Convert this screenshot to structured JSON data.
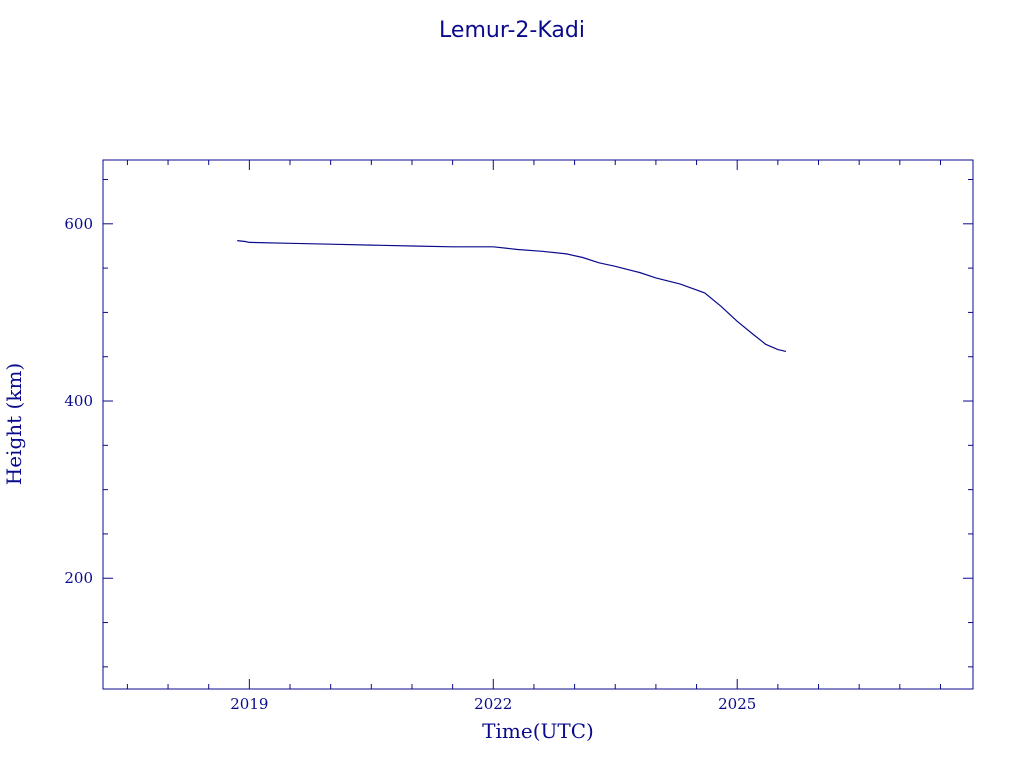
{
  "chart_data": {
    "type": "line",
    "title": "Lemur-2-Kadi",
    "xlabel": "Time(UTC)",
    "ylabel": "Height (km)",
    "xlim": [
      2017.2,
      2027.9
    ],
    "ylim": [
      75,
      672
    ],
    "x_ticks": [
      2019,
      2022,
      2025
    ],
    "x_tick_labels": [
      "2019",
      "2022",
      "2025"
    ],
    "x_minor_step": 0.5,
    "y_ticks": [
      200,
      400,
      600
    ],
    "y_tick_labels": [
      "200",
      "400",
      "600"
    ],
    "y_minor_step": 50,
    "grid": false,
    "color": "#0a0a8c",
    "series": [
      {
        "x": [
          2018.85,
          2018.95,
          2019.0,
          2019.5,
          2020.0,
          2020.5,
          2021.0,
          2021.5,
          2022.0,
          2022.3,
          2022.6,
          2022.9,
          2023.1,
          2023.3,
          2023.5,
          2023.8,
          2024.0,
          2024.3,
          2024.6,
          2024.8,
          2025.0,
          2025.2,
          2025.35,
          2025.5,
          2025.6
        ],
        "y": [
          581,
          580,
          579,
          578,
          577,
          576,
          575,
          574,
          574,
          571,
          569,
          566,
          562,
          556,
          552,
          545,
          539,
          532,
          522,
          507,
          490,
          475,
          464,
          458,
          456
        ]
      }
    ]
  }
}
